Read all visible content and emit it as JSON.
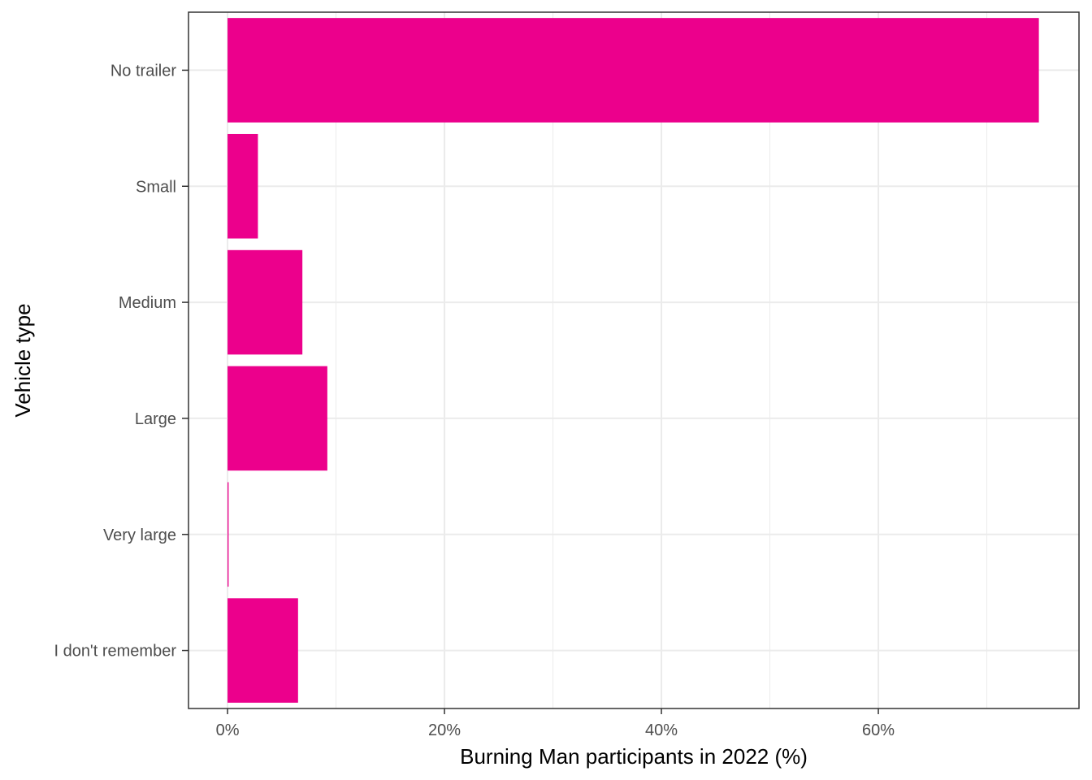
{
  "chart_data": {
    "type": "bar",
    "orientation": "horizontal",
    "categories": [
      "No trailer",
      "Small",
      "Medium",
      "Large",
      "Very large",
      "I don't remember"
    ],
    "values": [
      74.8,
      2.8,
      6.9,
      9.2,
      0.1,
      6.5
    ],
    "unit": "%",
    "xlabel": "Burning Man participants in 2022 (%)",
    "ylabel": "Vehicle type",
    "xlim": [
      -3.6,
      78.5
    ],
    "xticks": [
      0,
      20,
      40,
      60
    ],
    "xtick_labels": [
      "0%",
      "20%",
      "40%",
      "60%"
    ],
    "grid": true,
    "legend": "none",
    "colors": {
      "bar": "#EC008C",
      "grid": "#EBEBEB",
      "panel_border": "#333333",
      "tick_label": "#4D4D4D"
    }
  }
}
